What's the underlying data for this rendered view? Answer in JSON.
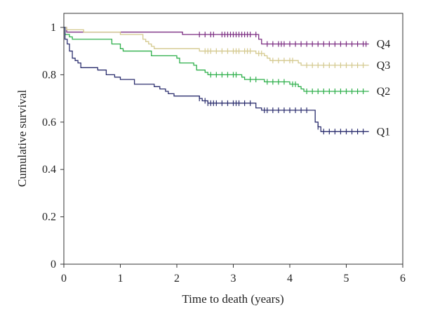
{
  "chart_data": {
    "type": "line",
    "xlabel": "Time to death (years)",
    "ylabel": "Cumulative survival",
    "xlim": [
      0,
      6
    ],
    "ylim": [
      0,
      1
    ],
    "x_ticks": [
      0,
      1,
      2,
      3,
      4,
      5,
      6
    ],
    "y_ticks": [
      0,
      0.2,
      0.4,
      0.6,
      0.8,
      1
    ],
    "y_tick_labels": [
      "0",
      "0.2",
      "0.4",
      "0.6",
      "0.8",
      "1"
    ],
    "grid": false,
    "step": true,
    "series": [
      {
        "name": "Q4",
        "color": "#7b2d82",
        "points": [
          [
            0,
            1
          ],
          [
            0.05,
            0.98
          ],
          [
            2.05,
            0.98
          ],
          [
            2.1,
            0.97
          ],
          [
            3.4,
            0.97
          ],
          [
            3.45,
            0.95
          ],
          [
            3.5,
            0.93
          ],
          [
            5.4,
            0.93
          ]
        ],
        "censor_x": [
          2.4,
          2.5,
          2.6,
          2.65,
          2.8,
          2.85,
          2.9,
          2.95,
          3.0,
          3.05,
          3.1,
          3.15,
          3.2,
          3.25,
          3.3,
          3.4,
          3.6,
          3.7,
          3.8,
          3.85,
          3.9,
          4.0,
          4.1,
          4.2,
          4.3,
          4.4,
          4.5,
          4.6,
          4.7,
          4.8,
          4.9,
          5.0,
          5.1,
          5.2,
          5.3,
          5.35
        ]
      },
      {
        "name": "Q3",
        "color": "#d4c98e",
        "points": [
          [
            0,
            1
          ],
          [
            0.05,
            0.99
          ],
          [
            0.35,
            0.98
          ],
          [
            1.0,
            0.97
          ],
          [
            1.4,
            0.95
          ],
          [
            1.45,
            0.94
          ],
          [
            1.5,
            0.93
          ],
          [
            1.55,
            0.92
          ],
          [
            1.6,
            0.91
          ],
          [
            2.35,
            0.91
          ],
          [
            2.4,
            0.9
          ],
          [
            3.35,
            0.9
          ],
          [
            3.4,
            0.89
          ],
          [
            3.55,
            0.88
          ],
          [
            3.6,
            0.87
          ],
          [
            3.65,
            0.86
          ],
          [
            4.1,
            0.86
          ],
          [
            4.15,
            0.85
          ],
          [
            4.2,
            0.84
          ],
          [
            5.4,
            0.84
          ]
        ],
        "censor_x": [
          2.5,
          2.55,
          2.6,
          2.7,
          2.8,
          2.9,
          3.0,
          3.05,
          3.1,
          3.2,
          3.25,
          3.3,
          3.45,
          3.5,
          3.7,
          3.8,
          3.9,
          4.0,
          4.05,
          4.3,
          4.4,
          4.5,
          4.6,
          4.7,
          4.8,
          4.9,
          5.0,
          5.1,
          5.2,
          5.3
        ]
      },
      {
        "name": "Q2",
        "color": "#2daf4a",
        "points": [
          [
            0,
            1
          ],
          [
            0.02,
            0.97
          ],
          [
            0.1,
            0.96
          ],
          [
            0.15,
            0.95
          ],
          [
            0.8,
            0.95
          ],
          [
            0.85,
            0.93
          ],
          [
            1.0,
            0.91
          ],
          [
            1.05,
            0.9
          ],
          [
            1.5,
            0.9
          ],
          [
            1.55,
            0.88
          ],
          [
            2.0,
            0.87
          ],
          [
            2.05,
            0.85
          ],
          [
            2.3,
            0.84
          ],
          [
            2.35,
            0.82
          ],
          [
            2.5,
            0.81
          ],
          [
            2.55,
            0.8
          ],
          [
            3.1,
            0.8
          ],
          [
            3.15,
            0.79
          ],
          [
            3.2,
            0.78
          ],
          [
            3.5,
            0.78
          ],
          [
            3.55,
            0.77
          ],
          [
            3.95,
            0.77
          ],
          [
            4.0,
            0.76
          ],
          [
            4.15,
            0.75
          ],
          [
            4.2,
            0.74
          ],
          [
            4.25,
            0.73
          ],
          [
            5.4,
            0.73
          ]
        ],
        "censor_x": [
          2.6,
          2.7,
          2.8,
          2.9,
          3.0,
          3.05,
          3.3,
          3.4,
          3.6,
          3.7,
          3.8,
          3.9,
          4.05,
          4.1,
          4.3,
          4.4,
          4.5,
          4.6,
          4.7,
          4.8,
          4.9,
          5.0,
          5.1,
          5.2,
          5.3
        ]
      },
      {
        "name": "Q1",
        "color": "#2b2e6e",
        "points": [
          [
            0,
            1
          ],
          [
            0.02,
            0.95
          ],
          [
            0.06,
            0.93
          ],
          [
            0.1,
            0.9
          ],
          [
            0.15,
            0.87
          ],
          [
            0.2,
            0.86
          ],
          [
            0.25,
            0.85
          ],
          [
            0.3,
            0.83
          ],
          [
            0.6,
            0.82
          ],
          [
            0.75,
            0.8
          ],
          [
            0.9,
            0.79
          ],
          [
            1.0,
            0.78
          ],
          [
            1.2,
            0.78
          ],
          [
            1.25,
            0.76
          ],
          [
            1.6,
            0.75
          ],
          [
            1.7,
            0.74
          ],
          [
            1.8,
            0.73
          ],
          [
            1.85,
            0.72
          ],
          [
            1.9,
            0.72
          ],
          [
            1.95,
            0.71
          ],
          [
            2.35,
            0.71
          ],
          [
            2.4,
            0.7
          ],
          [
            2.45,
            0.69
          ],
          [
            2.55,
            0.68
          ],
          [
            3.3,
            0.68
          ],
          [
            3.4,
            0.66
          ],
          [
            3.5,
            0.65
          ],
          [
            4.4,
            0.65
          ],
          [
            4.45,
            0.6
          ],
          [
            4.5,
            0.58
          ],
          [
            4.55,
            0.56
          ],
          [
            5.4,
            0.56
          ]
        ],
        "censor_x": [
          2.4,
          2.5,
          2.55,
          2.6,
          2.65,
          2.7,
          2.8,
          2.9,
          3.0,
          3.05,
          3.1,
          3.2,
          3.3,
          3.55,
          3.6,
          3.7,
          3.8,
          3.9,
          4.0,
          4.1,
          4.2,
          4.3,
          4.5,
          4.6,
          4.7,
          4.8,
          4.9,
          5.0,
          5.1,
          5.2,
          5.3
        ]
      }
    ]
  }
}
